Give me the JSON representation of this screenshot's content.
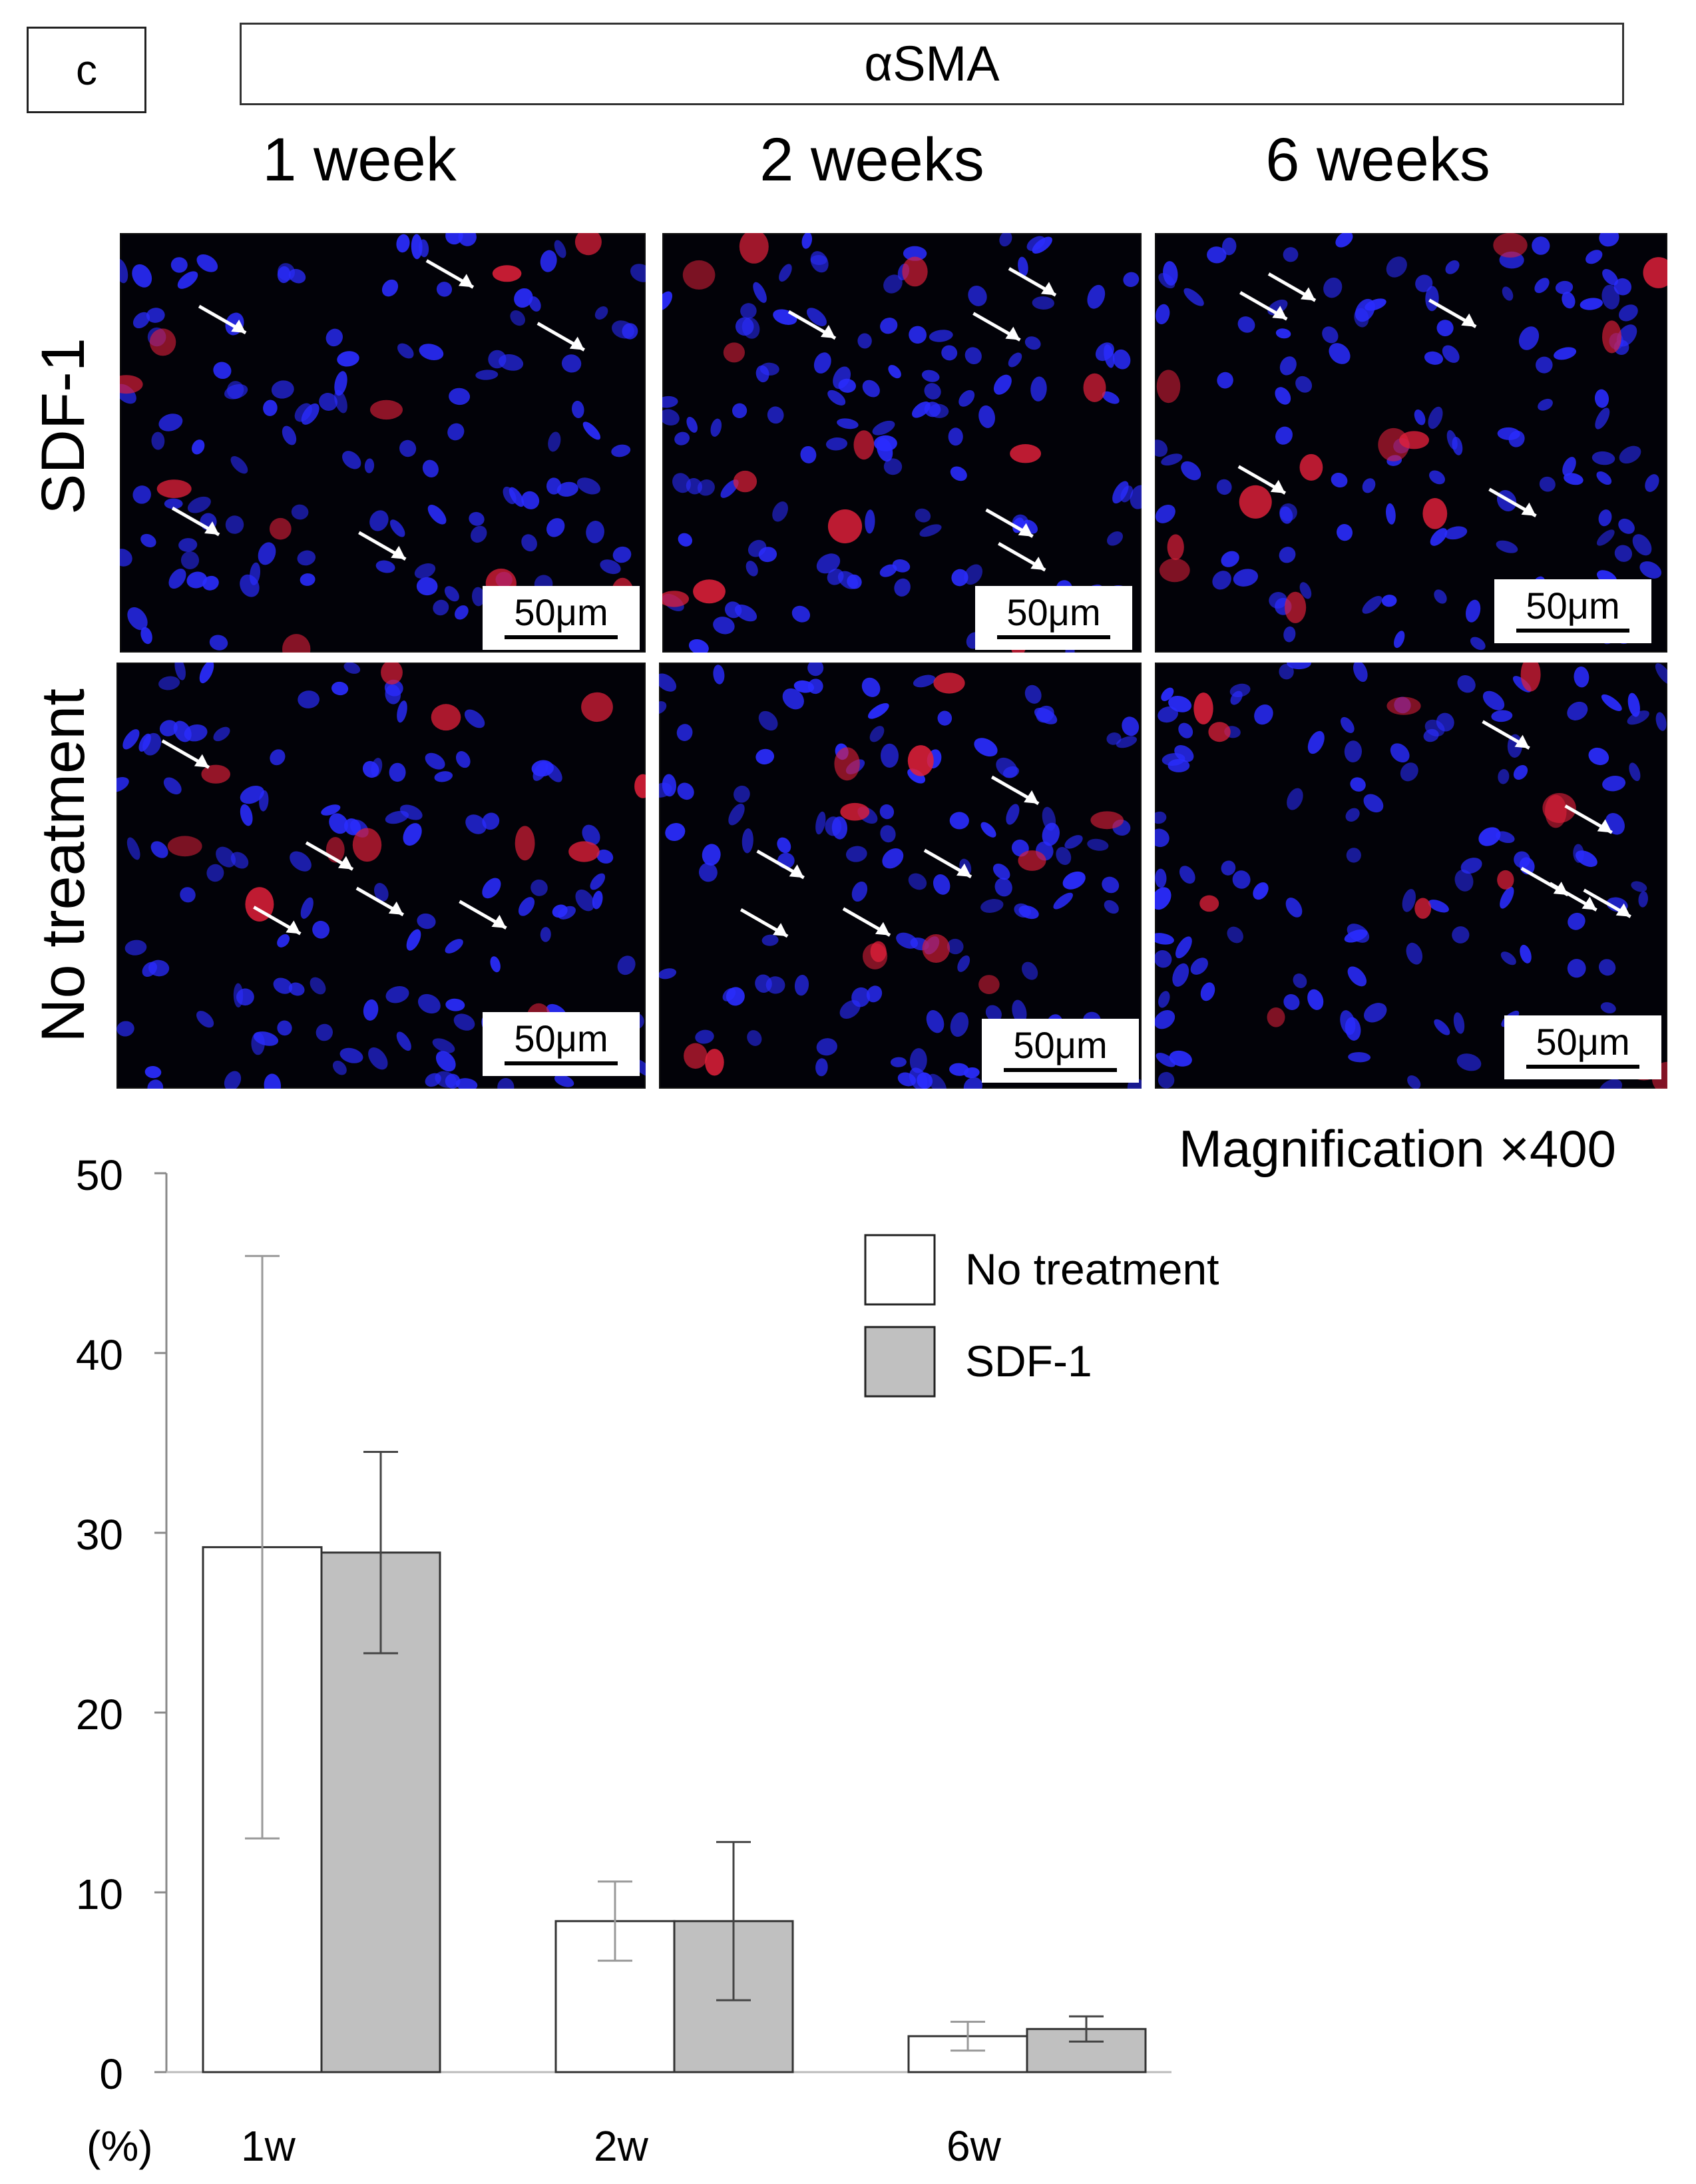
{
  "panel_letter": "c",
  "stain_label": "αSMA",
  "columns": [
    "1 week",
    "2 weeks",
    "6 weeks"
  ],
  "rows": [
    "SDF-1",
    "No treatment"
  ],
  "scale_bar_label": "50μm",
  "magnification": "Magnification ×400",
  "colors": {
    "nuclei": "#2a2cff",
    "asma": "#e0203a",
    "no_treatment_fill": "#ffffff",
    "sdf1_fill": "#c0c0c0",
    "bar_stroke": "#333333"
  },
  "chart_data": {
    "type": "bar",
    "categories": [
      "1w",
      "2w",
      "6w"
    ],
    "series": [
      {
        "name": "No treatment",
        "values": [
          29.2,
          8.4,
          2.0
        ],
        "error": [
          16.2,
          2.2,
          0.8
        ],
        "color": "#ffffff"
      },
      {
        "name": "SDF-1",
        "values": [
          28.9,
          8.4,
          2.4
        ],
        "error": [
          5.6,
          4.4,
          0.7
        ],
        "color": "#c0c0c0"
      }
    ],
    "yticks": [
      0,
      10,
      20,
      30,
      40,
      50
    ],
    "ylim": [
      0,
      50
    ],
    "ylabel": "(%)",
    "xlabel": "",
    "legend_position": "top-right",
    "grid": false
  }
}
